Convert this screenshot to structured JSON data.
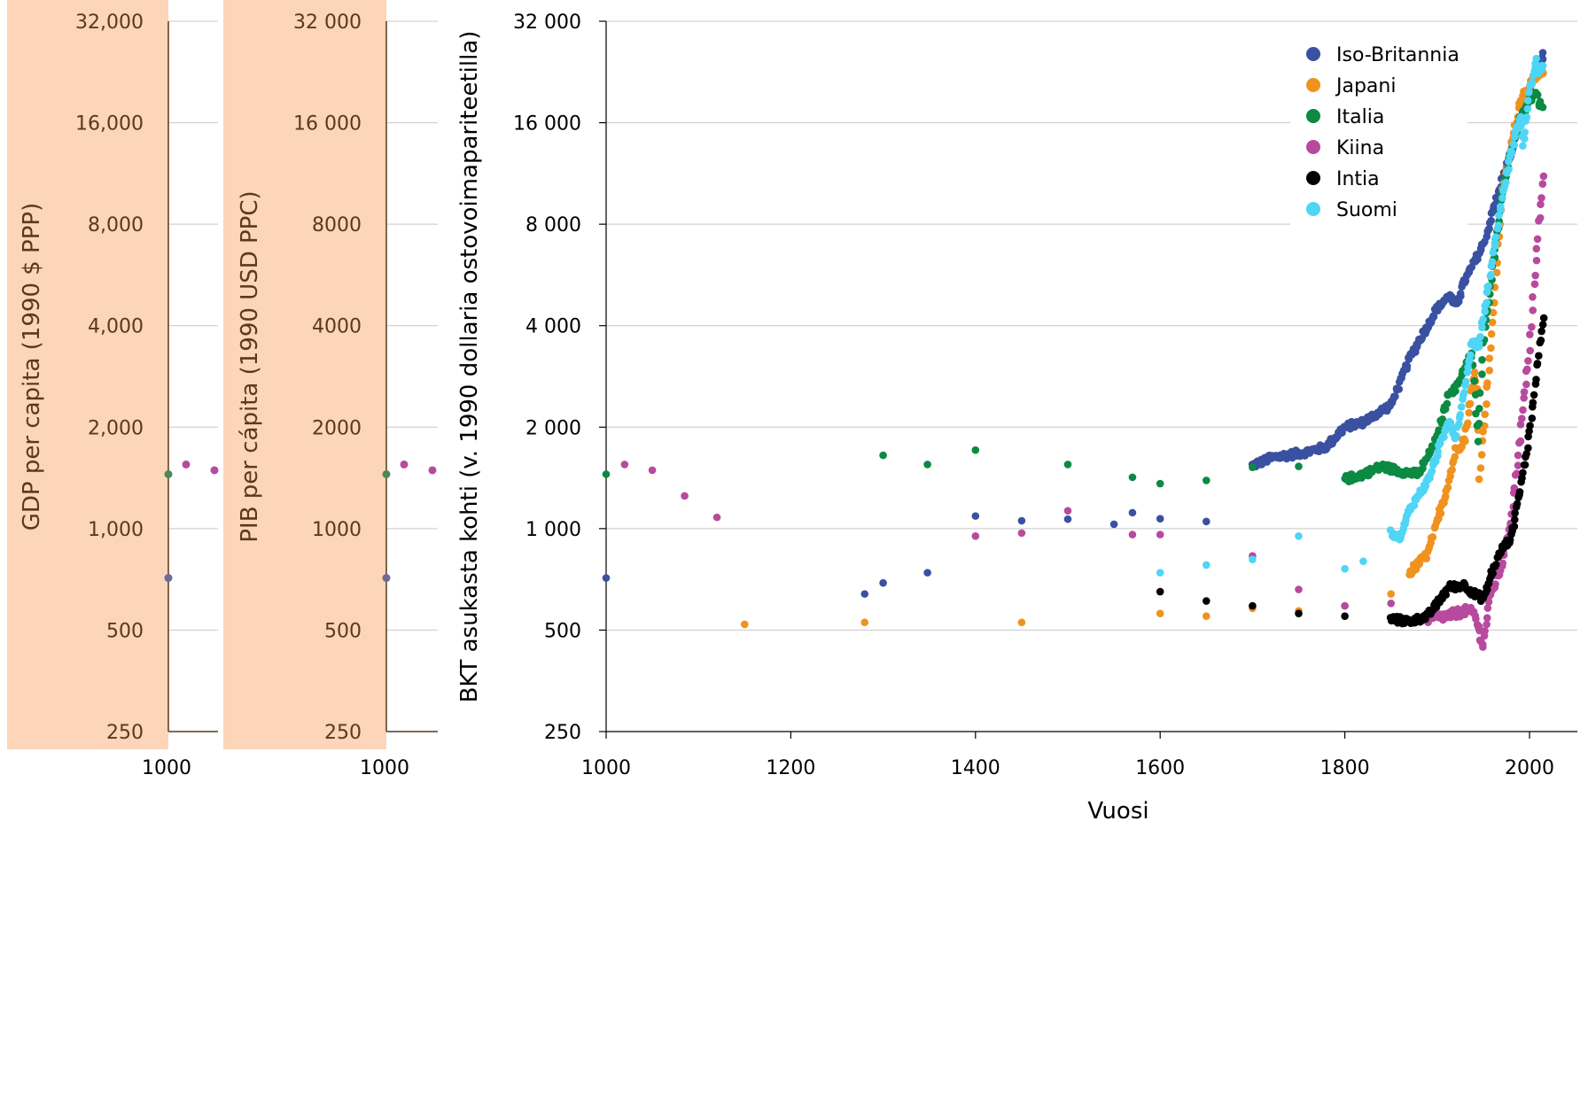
{
  "chart_data": {
    "type": "scatter",
    "xlabel": "Vuosi",
    "ylabel": "BKT asukasta kohti (v. 1990 dollaria ostovoimapariteetilla)",
    "xlim": [
      1000,
      2050
    ],
    "ylim": [
      250,
      32000
    ],
    "yscale": "log2",
    "x_ticks": [
      "1000",
      "1200",
      "1400",
      "1600",
      "1800",
      "2000"
    ],
    "y_ticks": [
      {
        "value": 250,
        "label": "250"
      },
      {
        "value": 500,
        "label": "500"
      },
      {
        "value": 1000,
        "label": "1 000"
      },
      {
        "value": 2000,
        "label": "2 000"
      },
      {
        "value": 4000,
        "label": "4 000"
      },
      {
        "value": 8000,
        "label": "8 000"
      },
      {
        "value": 16000,
        "label": "16 000"
      },
      {
        "value": 32000,
        "label": "32 000"
      }
    ],
    "grid": "horizontal",
    "legend_position": "top-right",
    "ghost_panels": [
      {
        "ylabel": "GDP per capita (1990 $ PPP)",
        "y_ticks": [
          "250",
          "500",
          "1,000",
          "2,000",
          "4,000",
          "8,000",
          "16,000",
          "32,000"
        ],
        "x_tick": "1000"
      },
      {
        "ylabel": "PIB per cápita (1990 USD PPC)",
        "y_ticks": [
          "250",
          "500",
          "1000",
          "2000",
          "4000",
          "8000",
          "16 000",
          "32 000"
        ],
        "x_tick": "1000"
      }
    ],
    "series": [
      {
        "name": "Iso-Britannia",
        "color": "#3a51a1",
        "points": [
          [
            1000,
            714
          ],
          [
            1280,
            640
          ],
          [
            1300,
            690
          ],
          [
            1348,
            740
          ],
          [
            1400,
            1090
          ],
          [
            1450,
            1055
          ],
          [
            1500,
            1067
          ],
          [
            1550,
            1030
          ],
          [
            1570,
            1115
          ],
          [
            1600,
            1070
          ],
          [
            1650,
            1050
          ]
        ],
        "anchors": [
          [
            1700,
            1540
          ],
          [
            1720,
            1620
          ],
          [
            1760,
            1690
          ],
          [
            1780,
            1750
          ],
          [
            1800,
            2000
          ],
          [
            1820,
            2070
          ],
          [
            1850,
            2330
          ],
          [
            1870,
            3190
          ],
          [
            1900,
            4492
          ],
          [
            1913,
            4921
          ],
          [
            1920,
            4550
          ],
          [
            1930,
            5440
          ],
          [
            1938,
            5983
          ],
          [
            1950,
            6939
          ],
          [
            1960,
            8645
          ],
          [
            1970,
            10767
          ],
          [
            1980,
            12931
          ],
          [
            1990,
            16430
          ],
          [
            2000,
            19817
          ],
          [
            2008,
            23700
          ],
          [
            2010,
            23000
          ],
          [
            2015,
            25500
          ]
        ],
        "jitter": 0.035
      },
      {
        "name": "Japani",
        "color": "#f0921e",
        "points": [
          [
            1150,
            520
          ],
          [
            1280,
            527
          ],
          [
            1450,
            527
          ],
          [
            1600,
            560
          ],
          [
            1650,
            550
          ],
          [
            1700,
            580
          ],
          [
            1750,
            570
          ],
          [
            1800,
            590
          ],
          [
            1850,
            640
          ]
        ],
        "anchors": [
          [
            1870,
            740
          ],
          [
            1890,
            840
          ],
          [
            1913,
            1390
          ],
          [
            1920,
            1700
          ],
          [
            1930,
            1850
          ],
          [
            1940,
            2870
          ],
          [
            1944,
            2600
          ],
          [
            1946,
            1440
          ],
          [
            1950,
            1920
          ],
          [
            1960,
            3990
          ],
          [
            1970,
            9710
          ],
          [
            1980,
            13430
          ],
          [
            1990,
            18790
          ],
          [
            2000,
            20740
          ],
          [
            2010,
            21900
          ],
          [
            2015,
            22500
          ]
        ],
        "jitter": 0.04
      },
      {
        "name": "Italia",
        "color": "#0c8a43",
        "points": [
          [
            1000,
            1450
          ],
          [
            1300,
            1650
          ],
          [
            1348,
            1550
          ],
          [
            1400,
            1710
          ],
          [
            1500,
            1550
          ],
          [
            1570,
            1420
          ],
          [
            1600,
            1360
          ],
          [
            1650,
            1390
          ],
          [
            1700,
            1520
          ],
          [
            1750,
            1530
          ]
        ],
        "anchors": [
          [
            1800,
            1400
          ],
          [
            1820,
            1450
          ],
          [
            1840,
            1530
          ],
          [
            1860,
            1480
          ],
          [
            1880,
            1450
          ],
          [
            1900,
            1850
          ],
          [
            1913,
            2560
          ],
          [
            1920,
            2590
          ],
          [
            1930,
            3000
          ],
          [
            1938,
            3300
          ],
          [
            1944,
            1830
          ],
          [
            1950,
            3500
          ],
          [
            1960,
            5900
          ],
          [
            1970,
            9700
          ],
          [
            1980,
            13100
          ],
          [
            1990,
            16300
          ],
          [
            2000,
            18700
          ],
          [
            2007,
            19700
          ],
          [
            2010,
            18500
          ],
          [
            2015,
            17500
          ]
        ],
        "jitter": 0.035
      },
      {
        "name": "Kiina",
        "color": "#b84a9e",
        "points": [
          [
            1020,
            1550
          ],
          [
            1050,
            1490
          ],
          [
            1085,
            1250
          ],
          [
            1120,
            1080
          ],
          [
            1400,
            950
          ],
          [
            1450,
            970
          ],
          [
            1500,
            1130
          ],
          [
            1570,
            960
          ],
          [
            1600,
            960
          ],
          [
            1700,
            830
          ],
          [
            1750,
            660
          ],
          [
            1800,
            590
          ],
          [
            1850,
            600
          ],
          [
            1870,
            530
          ]
        ],
        "anchors": [
          [
            1890,
            540
          ],
          [
            1913,
            552
          ],
          [
            1920,
            560
          ],
          [
            1930,
            570
          ],
          [
            1940,
            562
          ],
          [
            1950,
            450
          ],
          [
            1955,
            580
          ],
          [
            1960,
            660
          ],
          [
            1970,
            780
          ],
          [
            1980,
            1060
          ],
          [
            1990,
            1870
          ],
          [
            2000,
            3420
          ],
          [
            2008,
            6700
          ],
          [
            2010,
            8000
          ],
          [
            2015,
            11000
          ]
        ],
        "jitter": 0.045
      },
      {
        "name": "Intia",
        "color": "#000000",
        "points": [
          [
            1600,
            650
          ],
          [
            1650,
            610
          ],
          [
            1700,
            590
          ],
          [
            1750,
            560
          ],
          [
            1800,
            550
          ]
        ],
        "anchors": [
          [
            1850,
            540
          ],
          [
            1870,
            530
          ],
          [
            1890,
            550
          ],
          [
            1900,
            600
          ],
          [
            1913,
            670
          ],
          [
            1930,
            680
          ],
          [
            1940,
            640
          ],
          [
            1950,
            620
          ],
          [
            1960,
            750
          ],
          [
            1970,
            870
          ],
          [
            1980,
            940
          ],
          [
            1990,
            1310
          ],
          [
            2000,
            1900
          ],
          [
            2008,
            3000
          ],
          [
            2015,
            4300
          ]
        ],
        "jitter": 0.035
      },
      {
        "name": "Suomi",
        "color": "#4fd5f6",
        "points": [
          [
            1600,
            740
          ],
          [
            1650,
            780
          ],
          [
            1700,
            810
          ],
          [
            1750,
            950
          ],
          [
            1800,
            760
          ],
          [
            1820,
            800
          ]
        ],
        "anchors": [
          [
            1850,
            970
          ],
          [
            1860,
            940
          ],
          [
            1870,
            1140
          ],
          [
            1890,
            1380
          ],
          [
            1900,
            1670
          ],
          [
            1913,
            2110
          ],
          [
            1920,
            1850
          ],
          [
            1930,
            2670
          ],
          [
            1938,
            3590
          ],
          [
            1945,
            3450
          ],
          [
            1950,
            4250
          ],
          [
            1960,
            6230
          ],
          [
            1970,
            9580
          ],
          [
            1980,
            12950
          ],
          [
            1990,
            16870
          ],
          [
            1993,
            13500
          ],
          [
            2000,
            19800
          ],
          [
            2008,
            24300
          ],
          [
            2010,
            22800
          ],
          [
            2015,
            23500
          ]
        ],
        "jitter": 0.03
      }
    ]
  }
}
